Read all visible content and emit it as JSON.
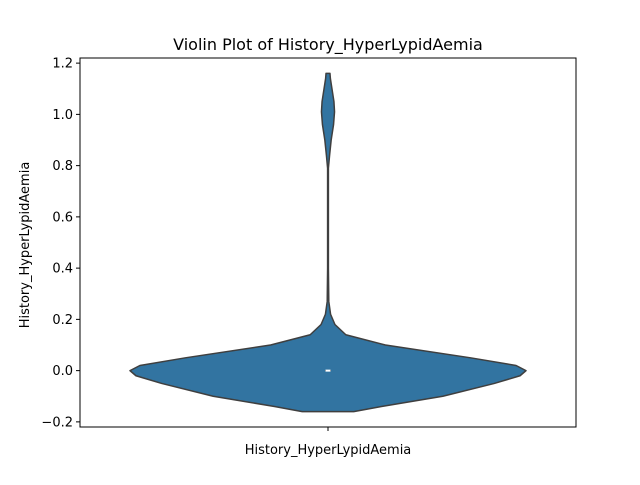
{
  "chart_data": {
    "type": "violin",
    "title": "Violin Plot of History_HyperLypidAemia",
    "xlabel": "",
    "ylabel": "History_HyperLypidAemia",
    "categories": [
      "History_HyperLypidAemia"
    ],
    "ylim": [
      -0.22,
      1.22
    ],
    "yticks": [
      -0.2,
      0.0,
      0.2,
      0.4,
      0.6,
      0.8,
      1.0,
      1.2
    ],
    "ytick_labels": [
      "−0.2",
      "0.0",
      "0.2",
      "0.4",
      "0.6",
      "0.8",
      "1.0",
      "1.2"
    ],
    "grid": false,
    "fill_color": "#3274a1",
    "edge_color": "#3f3f3f",
    "median_marker_color": "#ffffff",
    "density_profile": [
      {
        "y": -0.16,
        "half_width": 0.13
      },
      {
        "y": -0.14,
        "half_width": 0.27
      },
      {
        "y": -0.1,
        "half_width": 0.58
      },
      {
        "y": -0.05,
        "half_width": 0.84
      },
      {
        "y": -0.02,
        "half_width": 0.97
      },
      {
        "y": 0.0,
        "half_width": 1.0
      },
      {
        "y": 0.02,
        "half_width": 0.95
      },
      {
        "y": 0.05,
        "half_width": 0.72
      },
      {
        "y": 0.1,
        "half_width": 0.29
      },
      {
        "y": 0.14,
        "half_width": 0.09
      },
      {
        "y": 0.18,
        "half_width": 0.035
      },
      {
        "y": 0.22,
        "half_width": 0.013
      },
      {
        "y": 0.27,
        "half_width": 0.004
      },
      {
        "y": 0.4,
        "half_width": 0.002
      },
      {
        "y": 0.79,
        "half_width": 0.002
      },
      {
        "y": 0.84,
        "half_width": 0.008
      },
      {
        "y": 0.9,
        "half_width": 0.016
      },
      {
        "y": 0.96,
        "half_width": 0.028
      },
      {
        "y": 1.01,
        "half_width": 0.033
      },
      {
        "y": 1.05,
        "half_width": 0.03
      },
      {
        "y": 1.1,
        "half_width": 0.02
      },
      {
        "y": 1.14,
        "half_width": 0.012
      },
      {
        "y": 1.16,
        "half_width": 0.01
      }
    ],
    "median": 0.0,
    "q1": 0.0,
    "q3": 0.0
  }
}
